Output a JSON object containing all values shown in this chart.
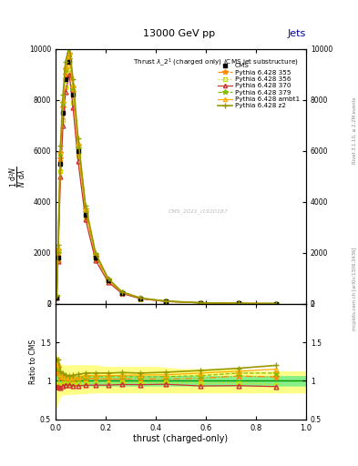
{
  "title_top": "13000 GeV pp",
  "title_right": "Jets",
  "plot_title": "Thrust $\\lambda\\_2^1$ (charged only) (CMS jet substructure)",
  "xlabel": "thrust (charged-only)",
  "ylabel_main": "1/N  d$^2$N/d$\\lambda$",
  "ylabel_ratio": "Ratio to CMS",
  "watermark": "CMS_2021_I1920187",
  "right_label_top": "Rivet 3.1.10, ≥ 2.2M events",
  "right_label_bottom": "mcplots.cern.ch [arXiv:1306.3436]",
  "xlim": [
    0,
    1
  ],
  "ylim_main": [
    0,
    10000
  ],
  "ylim_ratio": [
    0.5,
    2.0
  ],
  "yticks_main": [
    0,
    2000,
    4000,
    6000,
    8000,
    10000
  ],
  "yticks_ratio": [
    0.5,
    1.0,
    1.5,
    2.0
  ],
  "cms_x": [
    0.005,
    0.01,
    0.02,
    0.03,
    0.04,
    0.055,
    0.07,
    0.09,
    0.12,
    0.16,
    0.21,
    0.265,
    0.34,
    0.44,
    0.58,
    0.73,
    0.88
  ],
  "cms_y": [
    250,
    1800,
    5500,
    7500,
    8800,
    9500,
    8200,
    6000,
    3500,
    1800,
    900,
    420,
    200,
    90,
    30,
    8,
    2
  ],
  "p355_y": [
    280,
    2000,
    5700,
    7700,
    9000,
    9600,
    8300,
    6100,
    3600,
    1850,
    920,
    430,
    205,
    92,
    31,
    8.5,
    2.1
  ],
  "p356_y": [
    240,
    1700,
    5200,
    7200,
    8500,
    9200,
    7900,
    5800,
    3400,
    1750,
    870,
    410,
    195,
    88,
    29,
    7.8,
    1.9
  ],
  "p370_y": [
    230,
    1650,
    5000,
    7000,
    8300,
    9000,
    7700,
    5600,
    3300,
    1700,
    850,
    400,
    190,
    86,
    28,
    7.5,
    1.85
  ],
  "p379_y": [
    290,
    2100,
    5900,
    7900,
    9200,
    9800,
    8500,
    6200,
    3700,
    1900,
    950,
    445,
    210,
    95,
    32,
    8.8,
    2.2
  ],
  "pambt1_y": [
    300,
    2200,
    6000,
    8000,
    9300,
    9900,
    8600,
    6300,
    3750,
    1920,
    960,
    450,
    215,
    97,
    33,
    9.0,
    2.3
  ],
  "pz2_y": [
    320,
    2300,
    6200,
    8200,
    9500,
    10100,
    8800,
    6500,
    3850,
    1980,
    990,
    465,
    220,
    100,
    34,
    9.3,
    2.4
  ],
  "ratio_x": [
    0.0,
    0.02,
    0.15,
    0.2,
    0.3,
    0.4,
    0.5,
    0.6,
    0.7,
    0.8,
    0.9,
    1.0
  ],
  "ratio_green_lo": [
    0.92,
    0.94,
    0.94,
    0.94,
    0.94,
    0.94,
    0.94,
    0.94,
    0.94,
    0.94,
    0.94,
    0.94
  ],
  "ratio_green_hi": [
    1.08,
    1.06,
    1.06,
    1.06,
    1.06,
    1.06,
    1.06,
    1.06,
    1.06,
    1.06,
    1.06,
    1.06
  ],
  "ratio_yellow_lo": [
    0.65,
    0.82,
    0.85,
    0.85,
    0.85,
    0.85,
    0.85,
    0.85,
    0.85,
    0.85,
    0.85,
    0.85
  ],
  "ratio_yellow_hi": [
    1.35,
    1.2,
    1.2,
    1.18,
    1.18,
    1.18,
    1.15,
    1.15,
    1.15,
    1.12,
    1.12,
    1.12
  ],
  "series_styles": [
    {
      "label": "CMS",
      "color": "#000000",
      "marker": "s",
      "ms": 3.5,
      "ls": "none",
      "lw": 0,
      "filled": true
    },
    {
      "label": "Pythia 6.428 355",
      "color": "#ff8800",
      "marker": "*",
      "ms": 5,
      "ls": "-.",
      "lw": 0.9,
      "filled": true
    },
    {
      "label": "Pythia 6.428 356",
      "color": "#ccdd00",
      "marker": "s",
      "ms": 3.5,
      "ls": ":",
      "lw": 0.9,
      "filled": false
    },
    {
      "label": "Pythia 6.428 370",
      "color": "#cc3333",
      "marker": "^",
      "ms": 3.5,
      "ls": "-",
      "lw": 0.9,
      "filled": false
    },
    {
      "label": "Pythia 6.428 379",
      "color": "#88bb00",
      "marker": "*",
      "ms": 5,
      "ls": "--",
      "lw": 0.9,
      "filled": true
    },
    {
      "label": "Pythia 6.428 ambt1",
      "color": "#ffaa00",
      "marker": "^",
      "ms": 3.5,
      "ls": "-",
      "lw": 0.9,
      "filled": false
    },
    {
      "label": "Pythia 6.428 z2",
      "color": "#999900",
      "marker": "+",
      "ms": 5,
      "ls": "-",
      "lw": 1.2,
      "filled": true
    }
  ]
}
